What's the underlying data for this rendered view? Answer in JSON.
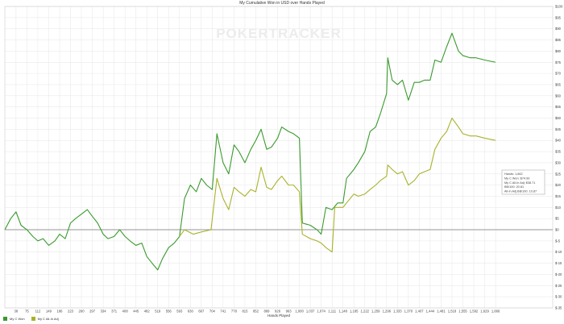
{
  "chart_data": {
    "type": "line",
    "title": "My Cumulative Won in USD over Hands Played",
    "watermark": "POKERTRACKER",
    "xlabel": "Hands Played",
    "ylabel": "",
    "xlim": [
      0,
      1860
    ],
    "ylim": [
      -35,
      100
    ],
    "y_ticks": [
      "$-35",
      "$-30",
      "$-25",
      "$-20",
      "$-15",
      "$-10",
      "$-5",
      "$0",
      "$5",
      "$10",
      "$15",
      "$20",
      "$25",
      "$30",
      "$35",
      "$40",
      "$45",
      "$50",
      "$55",
      "$60",
      "$65",
      "$70",
      "$75",
      "$80",
      "$85",
      "$90",
      "$95",
      "$100"
    ],
    "x_ticks": [
      "38",
      "75",
      "112",
      "149",
      "186",
      "223",
      "260",
      "297",
      "334",
      "371",
      "408",
      "445",
      "482",
      "519",
      "556",
      "593",
      "630",
      "667",
      "704",
      "741",
      "778",
      "815",
      "852",
      "889",
      "926",
      "963",
      "1,000",
      "1,037",
      "1,074",
      "1,111",
      "1,148",
      "1,185",
      "1,222",
      "1,259",
      "1,296",
      "1,333",
      "1,370",
      "1,407",
      "1,444",
      "1,481",
      "1,518",
      "1,555",
      "1,592",
      "1,629",
      "1,666"
    ],
    "grid": true,
    "legend_position": "bottom-left",
    "colors": {
      "won": "#3a9a2e",
      "allin": "#a9b22a",
      "zero_line": "#777777",
      "grid": "#e6e6e6"
    },
    "series": [
      {
        "name": "My C Won",
        "color": "#3a9a2e",
        "points": [
          [
            0,
            0
          ],
          [
            20,
            5
          ],
          [
            38,
            8
          ],
          [
            55,
            2
          ],
          [
            75,
            0
          ],
          [
            95,
            -3
          ],
          [
            112,
            -5
          ],
          [
            130,
            -4
          ],
          [
            149,
            -7
          ],
          [
            170,
            -5
          ],
          [
            186,
            -2
          ],
          [
            205,
            -4
          ],
          [
            223,
            3
          ],
          [
            240,
            5
          ],
          [
            260,
            7
          ],
          [
            280,
            9
          ],
          [
            297,
            6
          ],
          [
            315,
            3
          ],
          [
            334,
            -2
          ],
          [
            350,
            -4
          ],
          [
            371,
            -3
          ],
          [
            390,
            0
          ],
          [
            408,
            -3
          ],
          [
            425,
            -5
          ],
          [
            445,
            -7
          ],
          [
            465,
            -6
          ],
          [
            482,
            -12
          ],
          [
            500,
            -15
          ],
          [
            519,
            -18
          ],
          [
            535,
            -13
          ],
          [
            556,
            -8
          ],
          [
            575,
            -6
          ],
          [
            593,
            -3
          ],
          [
            610,
            14
          ],
          [
            630,
            20
          ],
          [
            650,
            17
          ],
          [
            667,
            23
          ],
          [
            685,
            20
          ],
          [
            704,
            18
          ],
          [
            720,
            43
          ],
          [
            741,
            30
          ],
          [
            760,
            25
          ],
          [
            778,
            38
          ],
          [
            795,
            35
          ],
          [
            815,
            30
          ],
          [
            835,
            36
          ],
          [
            852,
            40
          ],
          [
            870,
            45
          ],
          [
            889,
            36
          ],
          [
            905,
            37
          ],
          [
            926,
            41
          ],
          [
            940,
            46
          ],
          [
            963,
            44
          ],
          [
            980,
            43
          ],
          [
            1000,
            41
          ],
          [
            1010,
            3
          ],
          [
            1037,
            2
          ],
          [
            1060,
            0
          ],
          [
            1074,
            -2
          ],
          [
            1090,
            10
          ],
          [
            1111,
            9
          ],
          [
            1130,
            12
          ],
          [
            1148,
            12
          ],
          [
            1160,
            23
          ],
          [
            1185,
            27
          ],
          [
            1200,
            30
          ],
          [
            1222,
            35
          ],
          [
            1240,
            44
          ],
          [
            1259,
            46
          ],
          [
            1275,
            52
          ],
          [
            1296,
            61
          ],
          [
            1300,
            77
          ],
          [
            1315,
            67
          ],
          [
            1333,
            65
          ],
          [
            1350,
            67
          ],
          [
            1370,
            58
          ],
          [
            1390,
            66
          ],
          [
            1407,
            66
          ],
          [
            1425,
            67
          ],
          [
            1444,
            67
          ],
          [
            1460,
            76
          ],
          [
            1481,
            75
          ],
          [
            1500,
            82
          ],
          [
            1518,
            88
          ],
          [
            1540,
            80
          ],
          [
            1555,
            78
          ],
          [
            1580,
            77
          ],
          [
            1600,
            77
          ],
          [
            1629,
            76
          ],
          [
            1666,
            75
          ]
        ]
      },
      {
        "name": "My C All-In Adj",
        "color": "#a9b22a",
        "points": [
          [
            593,
            -3
          ],
          [
            610,
            0
          ],
          [
            640,
            -2
          ],
          [
            667,
            -1
          ],
          [
            700,
            0
          ],
          [
            720,
            23
          ],
          [
            741,
            14
          ],
          [
            760,
            9
          ],
          [
            778,
            19
          ],
          [
            795,
            17
          ],
          [
            815,
            15
          ],
          [
            835,
            18
          ],
          [
            852,
            17
          ],
          [
            870,
            28
          ],
          [
            889,
            19
          ],
          [
            905,
            18
          ],
          [
            926,
            22
          ],
          [
            940,
            24
          ],
          [
            963,
            20
          ],
          [
            980,
            20
          ],
          [
            1000,
            17
          ],
          [
            1010,
            -2
          ],
          [
            1037,
            -4
          ],
          [
            1060,
            -5
          ],
          [
            1074,
            -6
          ],
          [
            1090,
            -8
          ],
          [
            1111,
            -10
          ],
          [
            1120,
            10
          ],
          [
            1148,
            10
          ],
          [
            1160,
            12
          ],
          [
            1185,
            16
          ],
          [
            1200,
            15
          ],
          [
            1222,
            16
          ],
          [
            1240,
            18
          ],
          [
            1259,
            20
          ],
          [
            1275,
            22
          ],
          [
            1296,
            24
          ],
          [
            1300,
            29
          ],
          [
            1315,
            27
          ],
          [
            1333,
            25
          ],
          [
            1350,
            26
          ],
          [
            1370,
            20
          ],
          [
            1390,
            22
          ],
          [
            1407,
            25
          ],
          [
            1425,
            26
          ],
          [
            1444,
            27
          ],
          [
            1460,
            36
          ],
          [
            1481,
            41
          ],
          [
            1500,
            44
          ],
          [
            1518,
            50
          ],
          [
            1540,
            46
          ],
          [
            1555,
            43
          ],
          [
            1580,
            42
          ],
          [
            1600,
            42
          ],
          [
            1629,
            41
          ],
          [
            1666,
            40
          ]
        ]
      }
    ],
    "tooltip": {
      "lines": [
        "Hands: 1,662",
        "My C Won: $74.99",
        "My C All-In Adj: $38.71",
        "BB/100: 20.81",
        "All-In Adj BB/100: 10.87"
      ]
    }
  }
}
